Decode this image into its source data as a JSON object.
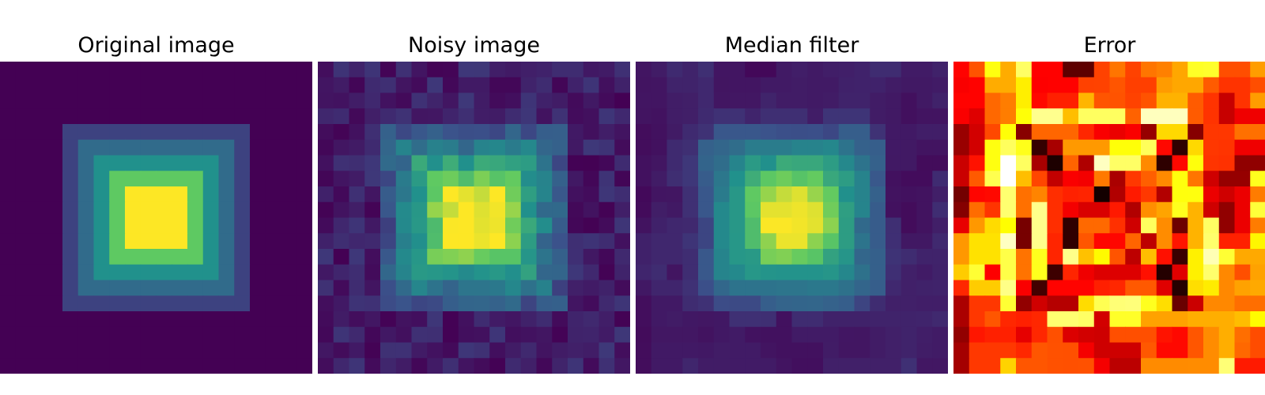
{
  "chart_data": [
    {
      "type": "heatmap",
      "title": "Original image",
      "colormap": "viridis",
      "grid_size": 20,
      "axis": "off",
      "value_range": [
        0,
        4
      ],
      "description": "Concentric square levels: 0 outside, rising by 1 per ring toward the 4x4 center block (value 4)."
    },
    {
      "type": "heatmap",
      "title": "Noisy image",
      "colormap": "viridis",
      "grid_size": 20,
      "axis": "off",
      "noise": "additive",
      "seed": 7
    },
    {
      "type": "heatmap",
      "title": "Median filter",
      "colormap": "viridis",
      "grid_size": 20,
      "axis": "off",
      "filter": "3x3 median of noisy image"
    },
    {
      "type": "heatmap",
      "title": "Error",
      "colormap": "hot",
      "grid_size": 20,
      "axis": "off",
      "definition": "absolute difference between median filter and original"
    }
  ]
}
